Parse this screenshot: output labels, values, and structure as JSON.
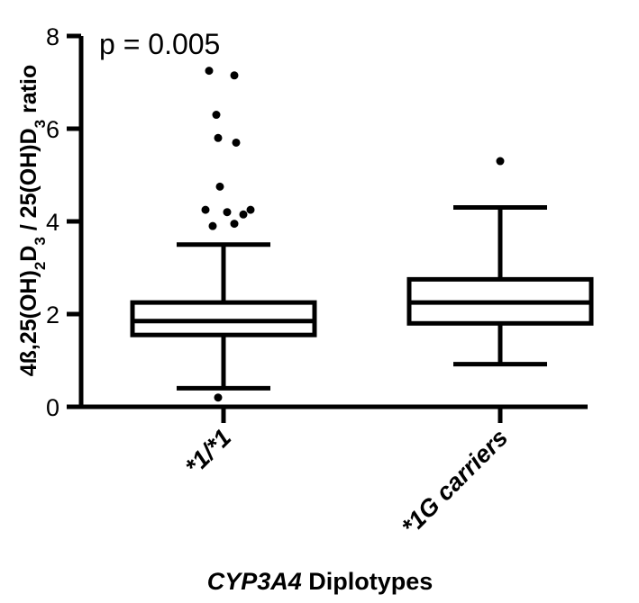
{
  "chart_data": {
    "type": "box",
    "annotation": "p = 0.005",
    "xlabel_italic": "CYP3A4",
    "xlabel_rest": " Diplotypes",
    "ylabel": {
      "parts": [
        "4ß,25(OH)",
        "2",
        "D",
        "3",
        " / 25(OH)D",
        "3",
        " ratio"
      ]
    },
    "ylim": [
      0,
      8
    ],
    "yticks": [
      0,
      2,
      4,
      6,
      8
    ],
    "categories": [
      "*1/*1",
      "*1G carriers"
    ],
    "boxes": [
      {
        "category": "*1/*1",
        "whisker_low": 0.4,
        "q1": 1.55,
        "median": 1.85,
        "q3": 2.25,
        "whisker_high": 3.5,
        "outliers": [
          7.25,
          7.15,
          6.3,
          5.8,
          5.7,
          4.75,
          4.25,
          4.2,
          4.15,
          4.25,
          3.9,
          3.95,
          0.2
        ]
      },
      {
        "category": "*1G carriers",
        "whisker_low": 0.92,
        "q1": 1.8,
        "median": 2.25,
        "q3": 2.75,
        "whisker_high": 4.3,
        "outliers": [
          5.3
        ]
      }
    ]
  }
}
